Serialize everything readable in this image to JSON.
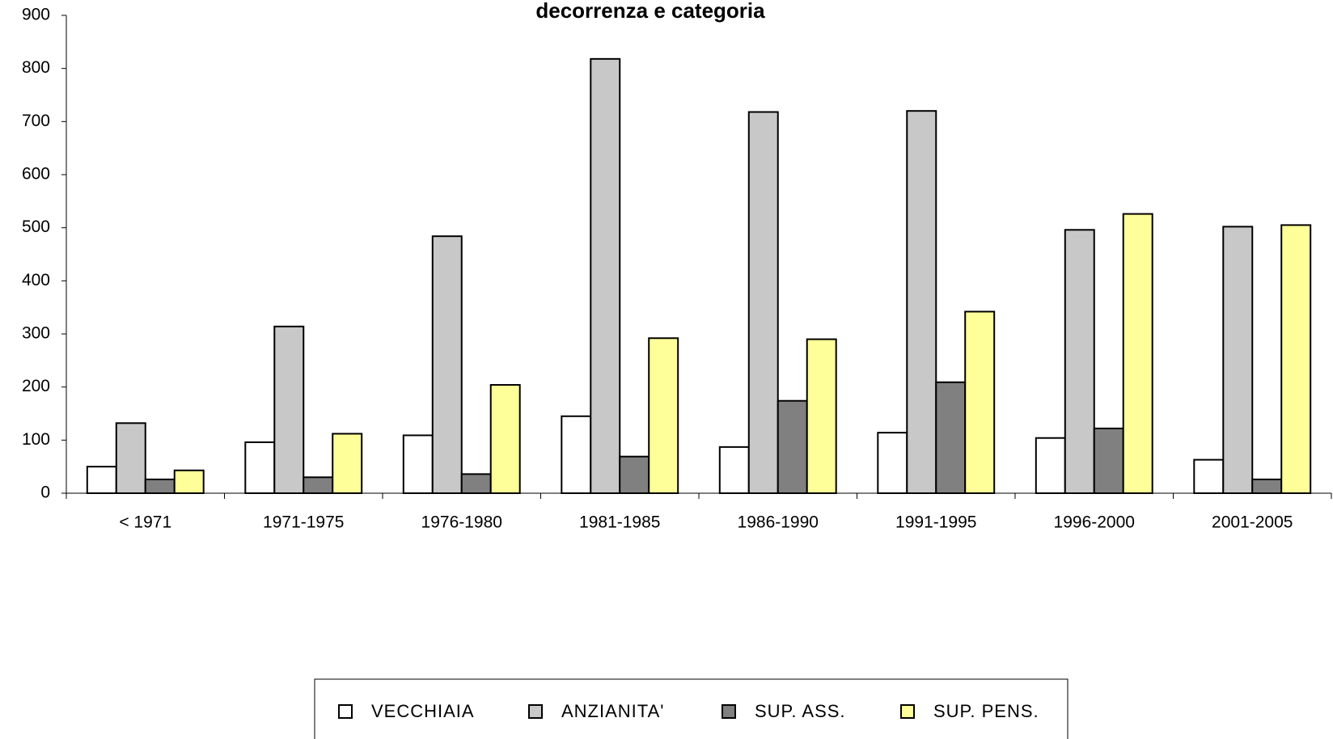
{
  "chart_data": {
    "type": "bar",
    "title": "decorrenza e categoria",
    "categories": [
      "< 1971",
      "1971-1975",
      "1976-1980",
      "1981-1985",
      "1986-1990",
      "1991-1995",
      "1996-2000",
      "2001-2005"
    ],
    "series": [
      {
        "name": "VECCHIAIA",
        "color": "#ffffff",
        "values": [
          50,
          96,
          109,
          145,
          87,
          114,
          104,
          63
        ]
      },
      {
        "name": "ANZIANITA'",
        "color": "#c8c8c8",
        "values": [
          132,
          314,
          484,
          818,
          718,
          720,
          496,
          502
        ]
      },
      {
        "name": "SUP. ASS.",
        "color": "#808080",
        "values": [
          26,
          30,
          36,
          69,
          174,
          209,
          122,
          26
        ]
      },
      {
        "name": "SUP. PENS.",
        "color": "#ffff99",
        "values": [
          43,
          112,
          204,
          292,
          290,
          342,
          526,
          505
        ]
      }
    ],
    "ylim": [
      0,
      900
    ],
    "yticks": [
      0,
      100,
      200,
      300,
      400,
      500,
      600,
      700,
      800,
      900
    ],
    "grid": false,
    "legend": "bottom"
  }
}
